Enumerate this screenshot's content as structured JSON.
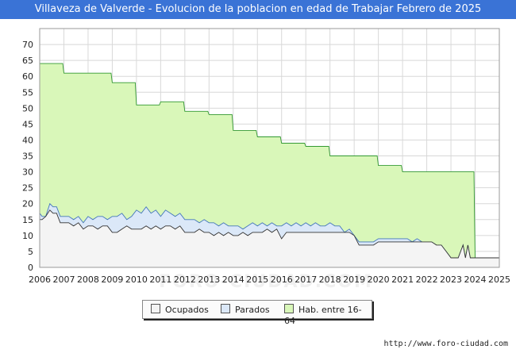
{
  "title": "Villaveza de Valverde - Evolucion de la poblacion en edad de Trabajar Febrero de 2025",
  "source": "http://www.foro-ciudad.com",
  "watermark": "FORO-CIUDAD.COM",
  "chart_data": {
    "type": "area",
    "title": "Villaveza de Valverde - Evolucion de la poblacion en edad de Trabajar Febrero de 2025",
    "xlabel": "",
    "ylabel": "",
    "xlim": [
      2006,
      2025
    ],
    "ylim": [
      0,
      75
    ],
    "x_ticks": [
      "2006",
      "2007",
      "2008",
      "2009",
      "2010",
      "2011",
      "2012",
      "2013",
      "2014",
      "2015",
      "2016",
      "2017",
      "2018",
      "2019",
      "2020",
      "2021",
      "2022",
      "2023",
      "2024",
      "2025"
    ],
    "y_ticks": [
      "0",
      "5",
      "10",
      "15",
      "20",
      "25",
      "30",
      "35",
      "40",
      "45",
      "50",
      "55",
      "60",
      "65",
      "70"
    ],
    "grid": true,
    "legend_position": "bottom",
    "series": [
      {
        "name": "Hab. entre 16-64",
        "color": "#d9f7b9",
        "line_color": "#339933",
        "points": [
          [
            2006.0,
            64
          ],
          [
            2006.95,
            64
          ],
          [
            2007.0,
            61
          ],
          [
            2007.95,
            61
          ],
          [
            2008.0,
            61
          ],
          [
            2008.95,
            61
          ],
          [
            2009.0,
            58
          ],
          [
            2009.95,
            58
          ],
          [
            2010.0,
            51
          ],
          [
            2010.95,
            51
          ],
          [
            2011.0,
            52
          ],
          [
            2011.95,
            52
          ],
          [
            2012.0,
            49
          ],
          [
            2012.95,
            49
          ],
          [
            2013.0,
            48
          ],
          [
            2013.95,
            48
          ],
          [
            2014.0,
            43
          ],
          [
            2014.95,
            43
          ],
          [
            2015.0,
            41
          ],
          [
            2015.95,
            41
          ],
          [
            2016.0,
            39
          ],
          [
            2016.95,
            39
          ],
          [
            2017.0,
            38
          ],
          [
            2017.95,
            38
          ],
          [
            2018.0,
            35
          ],
          [
            2018.95,
            35
          ],
          [
            2019.0,
            35
          ],
          [
            2019.95,
            35
          ],
          [
            2020.0,
            32
          ],
          [
            2020.95,
            32
          ],
          [
            2021.0,
            30
          ],
          [
            2021.95,
            30
          ],
          [
            2022.0,
            30
          ],
          [
            2022.95,
            30
          ],
          [
            2023.0,
            30
          ],
          [
            2023.95,
            30
          ],
          [
            2024.0,
            3
          ],
          [
            2025.0,
            3
          ]
        ]
      },
      {
        "name": "Parados",
        "color": "#dbe8f8",
        "line_color": "#4477bb",
        "points": [
          [
            2006.0,
            17
          ],
          [
            2006.1,
            16
          ],
          [
            2006.25,
            16
          ],
          [
            2006.42,
            20
          ],
          [
            2006.55,
            19
          ],
          [
            2006.7,
            19
          ],
          [
            2006.85,
            16
          ],
          [
            2007.0,
            16
          ],
          [
            2007.2,
            16
          ],
          [
            2007.4,
            15
          ],
          [
            2007.6,
            16
          ],
          [
            2007.8,
            14
          ],
          [
            2008.0,
            16
          ],
          [
            2008.2,
            15
          ],
          [
            2008.4,
            16
          ],
          [
            2008.6,
            16
          ],
          [
            2008.8,
            15
          ],
          [
            2009.0,
            16
          ],
          [
            2009.2,
            16
          ],
          [
            2009.4,
            17
          ],
          [
            2009.6,
            15
          ],
          [
            2009.8,
            16
          ],
          [
            2010.0,
            18
          ],
          [
            2010.2,
            17
          ],
          [
            2010.4,
            19
          ],
          [
            2010.6,
            17
          ],
          [
            2010.8,
            18
          ],
          [
            2011.0,
            16
          ],
          [
            2011.2,
            18
          ],
          [
            2011.4,
            17
          ],
          [
            2011.6,
            16
          ],
          [
            2011.8,
            17
          ],
          [
            2012.0,
            15
          ],
          [
            2012.2,
            15
          ],
          [
            2012.4,
            15
          ],
          [
            2012.6,
            14
          ],
          [
            2012.8,
            15
          ],
          [
            2013.0,
            14
          ],
          [
            2013.2,
            14
          ],
          [
            2013.4,
            13
          ],
          [
            2013.6,
            14
          ],
          [
            2013.8,
            13
          ],
          [
            2014.0,
            13
          ],
          [
            2014.2,
            13
          ],
          [
            2014.4,
            12
          ],
          [
            2014.6,
            13
          ],
          [
            2014.8,
            14
          ],
          [
            2015.0,
            13
          ],
          [
            2015.2,
            14
          ],
          [
            2015.4,
            13
          ],
          [
            2015.6,
            14
          ],
          [
            2015.8,
            13
          ],
          [
            2016.0,
            13
          ],
          [
            2016.2,
            14
          ],
          [
            2016.4,
            13
          ],
          [
            2016.6,
            14
          ],
          [
            2016.8,
            13
          ],
          [
            2017.0,
            14
          ],
          [
            2017.2,
            13
          ],
          [
            2017.4,
            14
          ],
          [
            2017.6,
            13
          ],
          [
            2017.8,
            13
          ],
          [
            2018.0,
            14
          ],
          [
            2018.2,
            13
          ],
          [
            2018.4,
            13
          ],
          [
            2018.6,
            11
          ],
          [
            2018.8,
            12
          ],
          [
            2019.0,
            10
          ],
          [
            2019.2,
            8
          ],
          [
            2019.4,
            8
          ],
          [
            2019.6,
            8
          ],
          [
            2019.8,
            8
          ],
          [
            2020.0,
            9
          ],
          [
            2020.2,
            9
          ],
          [
            2020.4,
            9
          ],
          [
            2020.6,
            9
          ],
          [
            2020.8,
            9
          ],
          [
            2021.0,
            9
          ],
          [
            2021.2,
            9
          ],
          [
            2021.4,
            8
          ],
          [
            2021.6,
            9
          ],
          [
            2021.8,
            8
          ],
          [
            2022.0,
            8
          ],
          [
            2022.2,
            8
          ],
          [
            2022.4,
            7
          ],
          [
            2022.6,
            7
          ],
          [
            2022.8,
            5
          ],
          [
            2023.0,
            3
          ],
          [
            2023.3,
            3
          ],
          [
            2023.5,
            7
          ],
          [
            2023.6,
            3
          ],
          [
            2023.7,
            7
          ],
          [
            2023.8,
            3
          ],
          [
            2024.0,
            3
          ],
          [
            2025.0,
            3
          ]
        ]
      },
      {
        "name": "Ocupados",
        "color": "#f4f4f4",
        "line_color": "#333333",
        "points": [
          [
            2006.0,
            15
          ],
          [
            2006.1,
            15
          ],
          [
            2006.25,
            16
          ],
          [
            2006.42,
            18
          ],
          [
            2006.55,
            17
          ],
          [
            2006.7,
            17
          ],
          [
            2006.85,
            14
          ],
          [
            2007.0,
            14
          ],
          [
            2007.2,
            14
          ],
          [
            2007.4,
            13
          ],
          [
            2007.6,
            14
          ],
          [
            2007.8,
            12
          ],
          [
            2008.0,
            13
          ],
          [
            2008.2,
            13
          ],
          [
            2008.4,
            12
          ],
          [
            2008.6,
            13
          ],
          [
            2008.8,
            13
          ],
          [
            2009.0,
            11
          ],
          [
            2009.2,
            11
          ],
          [
            2009.4,
            12
          ],
          [
            2009.6,
            13
          ],
          [
            2009.8,
            12
          ],
          [
            2010.0,
            12
          ],
          [
            2010.2,
            12
          ],
          [
            2010.4,
            13
          ],
          [
            2010.6,
            12
          ],
          [
            2010.8,
            13
          ],
          [
            2011.0,
            12
          ],
          [
            2011.2,
            13
          ],
          [
            2011.4,
            13
          ],
          [
            2011.6,
            12
          ],
          [
            2011.8,
            13
          ],
          [
            2012.0,
            11
          ],
          [
            2012.2,
            11
          ],
          [
            2012.4,
            11
          ],
          [
            2012.6,
            12
          ],
          [
            2012.8,
            11
          ],
          [
            2013.0,
            11
          ],
          [
            2013.2,
            10
          ],
          [
            2013.4,
            11
          ],
          [
            2013.6,
            10
          ],
          [
            2013.8,
            11
          ],
          [
            2014.0,
            10
          ],
          [
            2014.2,
            10
          ],
          [
            2014.4,
            11
          ],
          [
            2014.6,
            10
          ],
          [
            2014.8,
            11
          ],
          [
            2015.0,
            11
          ],
          [
            2015.2,
            11
          ],
          [
            2015.4,
            12
          ],
          [
            2015.6,
            11
          ],
          [
            2015.8,
            12
          ],
          [
            2016.0,
            9
          ],
          [
            2016.2,
            11
          ],
          [
            2016.4,
            11
          ],
          [
            2016.6,
            11
          ],
          [
            2016.8,
            11
          ],
          [
            2017.0,
            11
          ],
          [
            2017.2,
            11
          ],
          [
            2017.4,
            11
          ],
          [
            2017.6,
            11
          ],
          [
            2017.8,
            11
          ],
          [
            2018.0,
            11
          ],
          [
            2018.2,
            11
          ],
          [
            2018.4,
            11
          ],
          [
            2018.6,
            11
          ],
          [
            2018.8,
            11
          ],
          [
            2019.0,
            10
          ],
          [
            2019.2,
            7
          ],
          [
            2019.4,
            7
          ],
          [
            2019.6,
            7
          ],
          [
            2019.8,
            7
          ],
          [
            2020.0,
            8
          ],
          [
            2020.2,
            8
          ],
          [
            2020.4,
            8
          ],
          [
            2020.6,
            8
          ],
          [
            2020.8,
            8
          ],
          [
            2021.0,
            8
          ],
          [
            2021.2,
            8
          ],
          [
            2021.4,
            8
          ],
          [
            2021.6,
            8
          ],
          [
            2021.8,
            8
          ],
          [
            2022.0,
            8
          ],
          [
            2022.2,
            8
          ],
          [
            2022.4,
            7
          ],
          [
            2022.6,
            7
          ],
          [
            2022.8,
            5
          ],
          [
            2023.0,
            3
          ],
          [
            2023.3,
            3
          ],
          [
            2023.5,
            7
          ],
          [
            2023.6,
            3
          ],
          [
            2023.7,
            7
          ],
          [
            2023.8,
            3
          ],
          [
            2024.0,
            3
          ],
          [
            2025.0,
            3
          ]
        ]
      }
    ]
  },
  "legend": {
    "items": [
      {
        "label": "Ocupados",
        "color": "#f4f4f4"
      },
      {
        "label": "Parados",
        "color": "#dbe8f8"
      },
      {
        "label": "Hab. entre 16-64",
        "color": "#d9f7b9"
      }
    ]
  }
}
